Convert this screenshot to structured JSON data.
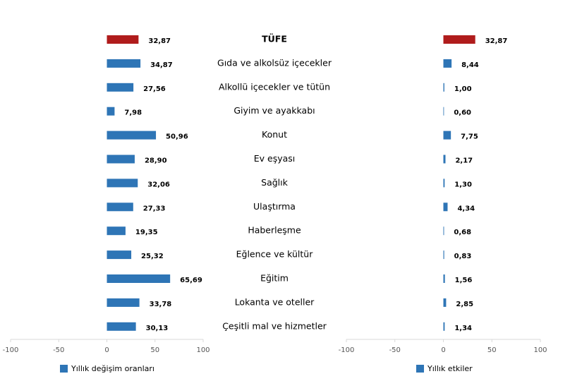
{
  "chart_data": [
    {
      "type": "barh",
      "legend": "Yıllık değişim oranları",
      "color": "#2e75b6",
      "categories": [
        "TÜFE",
        "Gıda ve alkolsüz içecekler",
        "Alkollü içecekler ve tütün",
        "Giyim ve ayakkabı",
        "Konut",
        "Ev eşyası",
        "Sağlık",
        "Ulaştırma",
        "Haberleşme",
        "Eğlence ve kültür",
        "Eğitim",
        "Lokanta ve oteller",
        "Çeşitli mal ve hizmetler"
      ],
      "values": [
        32.87,
        34.87,
        27.56,
        7.98,
        50.96,
        28.9,
        32.06,
        27.33,
        19.35,
        25.32,
        65.69,
        33.78,
        30.13
      ],
      "value_labels": [
        "32,87",
        "34,87",
        "27,56",
        "7,98",
        "50,96",
        "28,90",
        "32,06",
        "27,33",
        "19,35",
        "25,32",
        "65,69",
        "33,78",
        "30,13"
      ],
      "colors": [
        "#b01c1c",
        "#2e75b6",
        "#2e75b6",
        "#2e75b6",
        "#2e75b6",
        "#2e75b6",
        "#2e75b6",
        "#2e75b6",
        "#2e75b6",
        "#2e75b6",
        "#2e75b6",
        "#2e75b6",
        "#2e75b6"
      ],
      "xlim": [
        -100,
        100
      ],
      "xticks": [
        -100,
        -50,
        0,
        50,
        100
      ]
    },
    {
      "type": "barh",
      "legend": "Yıllık etkiler",
      "color": "#2e75b6",
      "values": [
        32.87,
        8.44,
        1.0,
        0.6,
        7.75,
        2.17,
        1.3,
        4.34,
        0.68,
        0.83,
        1.56,
        2.85,
        1.34
      ],
      "value_labels": [
        "32,87",
        "8,44",
        "1,00",
        "0,60",
        "7,75",
        "2,17",
        "1,30",
        "4,34",
        "0,68",
        "0,83",
        "1,56",
        "2,85",
        "1,34"
      ],
      "colors": [
        "#b01c1c",
        "#2e75b6",
        "#2e75b6",
        "#2e75b6",
        "#2e75b6",
        "#2e75b6",
        "#2e75b6",
        "#2e75b6",
        "#2e75b6",
        "#2e75b6",
        "#2e75b6",
        "#2e75b6",
        "#2e75b6"
      ],
      "xlim": [
        -100,
        100
      ],
      "xticks": [
        -100,
        -50,
        0,
        50,
        100
      ]
    }
  ]
}
